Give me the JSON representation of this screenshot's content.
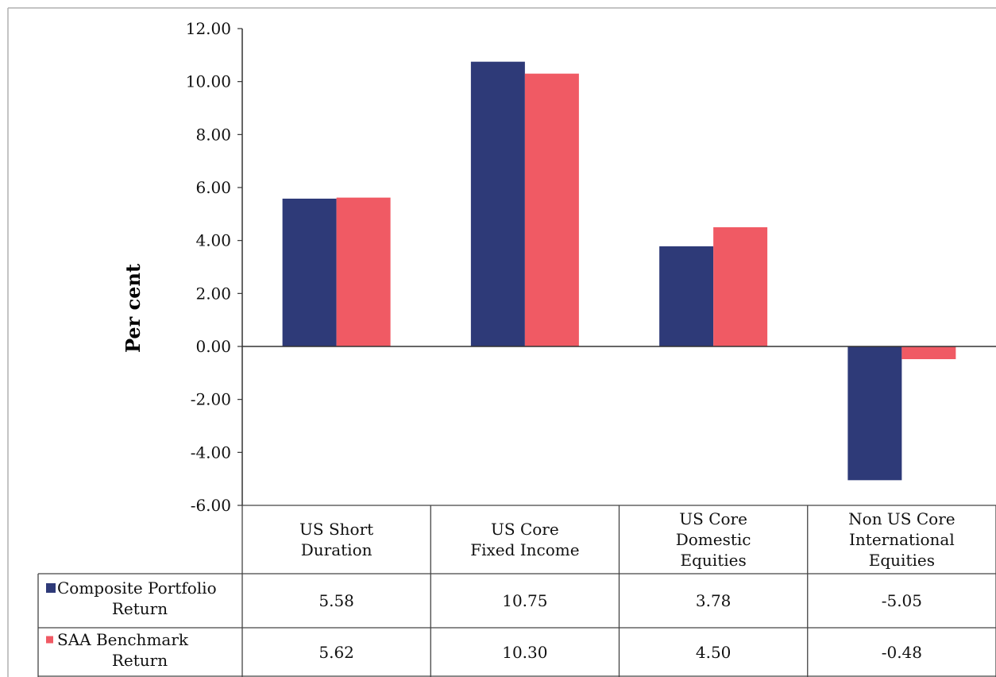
{
  "chart_data": {
    "type": "bar",
    "ylabel": "Per cent",
    "ylim": [
      -6,
      12
    ],
    "yticks": [
      "12.00",
      "10.00",
      "8.00",
      "6.00",
      "4.00",
      "2.00",
      "0.00",
      "-2.00",
      "-4.00",
      "-6.00"
    ],
    "ytick_values": [
      12,
      10,
      8,
      6,
      4,
      2,
      0,
      -2,
      -4,
      -6
    ],
    "categories": [
      [
        "US Short",
        "Duration"
      ],
      [
        "US Core",
        "Fixed Income"
      ],
      [
        "US Core",
        "Domestic",
        "Equities"
      ],
      [
        "Non US Core",
        "International",
        "Equities"
      ]
    ],
    "series": [
      {
        "name_lines": [
          "Composite Portfolio",
          "Return"
        ],
        "color": "#2e3a78",
        "values": [
          5.58,
          10.75,
          3.78,
          -5.05
        ],
        "display": [
          "5.58",
          "10.75",
          "3.78",
          "-5.05"
        ]
      },
      {
        "name_lines": [
          "SAA Benchmark",
          "Return"
        ],
        "color": "#f05a64",
        "values": [
          5.62,
          10.3,
          4.5,
          -0.48
        ],
        "display": [
          "5.62",
          "10.30",
          "4.50",
          "-0.48"
        ]
      }
    ],
    "grid": false,
    "legend": "data-table"
  }
}
